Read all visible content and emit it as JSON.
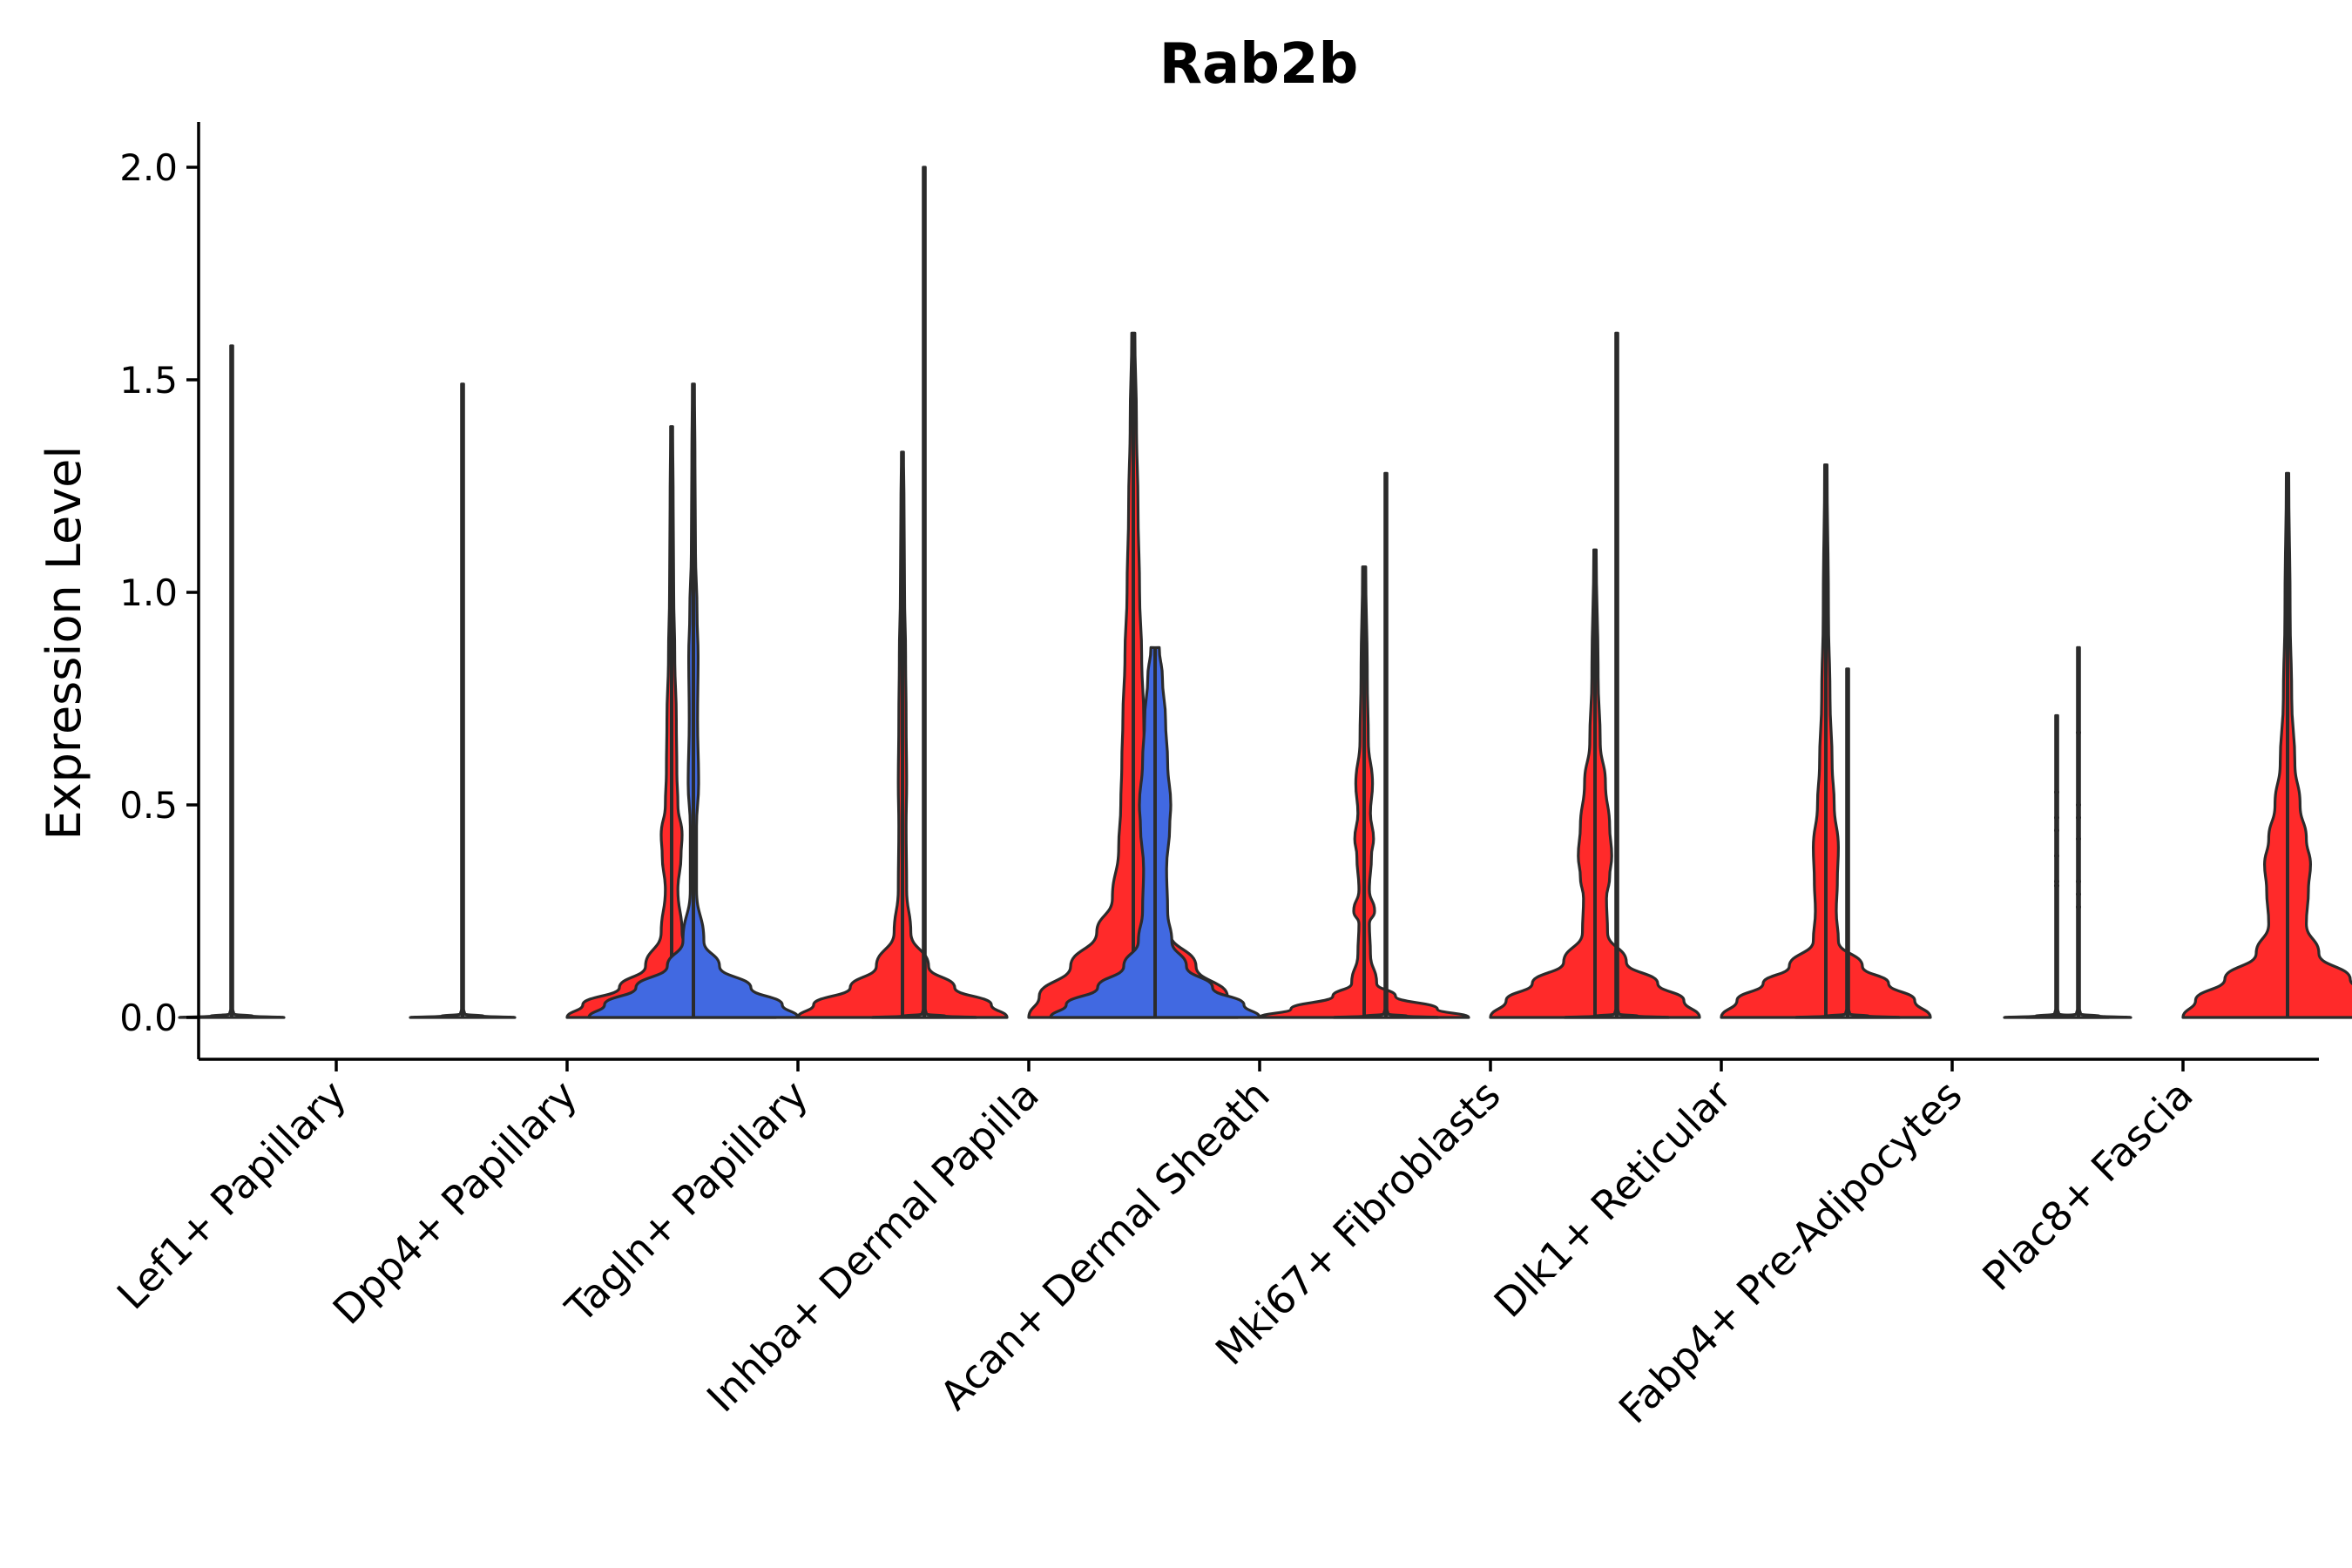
{
  "chart_data": {
    "type": "violin",
    "title": "Rab2b",
    "xlabel": "",
    "ylabel": "Expression Level",
    "ylim": [
      -0.1,
      2.1
    ],
    "yticks": [
      "0.0",
      "0.5",
      "1.0",
      "1.5",
      "2.0"
    ],
    "grid": false,
    "legend": "none",
    "colors": {
      "blue": "#4169e1",
      "red": "#ff2a2a",
      "none": "#ffffff",
      "outline": "#2b2b2b"
    },
    "categories": [
      "Lef1+ Papillary",
      "Dpp4+ Papillary",
      "Tagln+ Papillary",
      "Inhba+ Dermal Papilla",
      "Acan+ Dermal Sheath",
      "Mki67+ Fibroblasts",
      "Dlk1+ Reticular",
      "Fabp4+ Pre-Adipocytes",
      "Plac8+ Fascia"
    ],
    "violins": [
      {
        "category": "Lef1+ Papillary",
        "side": "left",
        "fill": "none",
        "max": 1.58,
        "profile": [
          [
            0,
            0.5
          ],
          [
            0.003,
            0.2
          ],
          [
            0.008,
            0.02
          ],
          [
            0.02,
            0.01
          ],
          [
            1.58,
            0.01
          ]
        ]
      },
      {
        "category": "Lef1+ Papillary",
        "side": "right",
        "fill": "none",
        "max": 0.0,
        "profile": []
      },
      {
        "category": "Dpp4+ Papillary",
        "side": "left",
        "fill": "none",
        "max": 1.49,
        "profile": [
          [
            0,
            0.5
          ],
          [
            0.003,
            0.2
          ],
          [
            0.008,
            0.02
          ],
          [
            0.02,
            0.01
          ],
          [
            1.49,
            0.01
          ]
        ]
      },
      {
        "category": "Dpp4+ Papillary",
        "side": "right",
        "fill": "red",
        "max": 1.39,
        "profile": [
          [
            0,
            1.0
          ],
          [
            0.03,
            0.85
          ],
          [
            0.07,
            0.5
          ],
          [
            0.12,
            0.25
          ],
          [
            0.2,
            0.1
          ],
          [
            0.3,
            0.06
          ],
          [
            0.38,
            0.09
          ],
          [
            0.43,
            0.1
          ],
          [
            0.5,
            0.06
          ],
          [
            0.58,
            0.05
          ],
          [
            0.7,
            0.045
          ],
          [
            0.85,
            0.03
          ],
          [
            1.0,
            0.02
          ],
          [
            1.2,
            0.015
          ],
          [
            1.39,
            0.01
          ]
        ]
      },
      {
        "category": "Tagln+ Papillary",
        "side": "left",
        "fill": "blue",
        "max": 1.49,
        "profile": [
          [
            0,
            1.0
          ],
          [
            0.03,
            0.85
          ],
          [
            0.07,
            0.55
          ],
          [
            0.12,
            0.25
          ],
          [
            0.18,
            0.1
          ],
          [
            0.3,
            0.03
          ],
          [
            0.45,
            0.03
          ],
          [
            0.55,
            0.05
          ],
          [
            0.7,
            0.04
          ],
          [
            0.85,
            0.045
          ],
          [
            0.95,
            0.035
          ],
          [
            1.1,
            0.02
          ],
          [
            1.3,
            0.015
          ],
          [
            1.49,
            0.01
          ]
        ]
      },
      {
        "category": "Tagln+ Papillary",
        "side": "right",
        "fill": "red",
        "max": 1.33,
        "profile": [
          [
            0,
            1.0
          ],
          [
            0.03,
            0.85
          ],
          [
            0.07,
            0.5
          ],
          [
            0.12,
            0.25
          ],
          [
            0.2,
            0.08
          ],
          [
            0.3,
            0.04
          ],
          [
            0.45,
            0.035
          ],
          [
            0.55,
            0.04
          ],
          [
            0.7,
            0.035
          ],
          [
            0.85,
            0.03
          ],
          [
            1.0,
            0.02
          ],
          [
            1.2,
            0.015
          ],
          [
            1.33,
            0.01
          ]
        ]
      },
      {
        "category": "Inhba+ Dermal Papilla",
        "side": "left",
        "fill": "none",
        "max": 2.0,
        "profile": [
          [
            0,
            0.5
          ],
          [
            0.003,
            0.2
          ],
          [
            0.008,
            0.02
          ],
          [
            0.02,
            0.01
          ],
          [
            2.0,
            0.01
          ]
        ]
      },
      {
        "category": "Inhba+ Dermal Papilla",
        "side": "right",
        "fill": "red",
        "max": 1.61,
        "profile": [
          [
            0,
            1.0
          ],
          [
            0.05,
            0.9
          ],
          [
            0.12,
            0.6
          ],
          [
            0.2,
            0.35
          ],
          [
            0.28,
            0.2
          ],
          [
            0.4,
            0.14
          ],
          [
            0.5,
            0.12
          ],
          [
            0.6,
            0.11
          ],
          [
            0.7,
            0.1
          ],
          [
            0.85,
            0.08
          ],
          [
            1.0,
            0.06
          ],
          [
            1.2,
            0.045
          ],
          [
            1.4,
            0.03
          ],
          [
            1.61,
            0.015
          ]
        ]
      },
      {
        "category": "Acan+ Dermal Sheath",
        "side": "left",
        "fill": "blue",
        "max": 0.87,
        "profile": [
          [
            0,
            1.0
          ],
          [
            0.03,
            0.85
          ],
          [
            0.07,
            0.55
          ],
          [
            0.12,
            0.3
          ],
          [
            0.18,
            0.16
          ],
          [
            0.25,
            0.12
          ],
          [
            0.35,
            0.11
          ],
          [
            0.45,
            0.14
          ],
          [
            0.5,
            0.15
          ],
          [
            0.6,
            0.12
          ],
          [
            0.7,
            0.1
          ],
          [
            0.8,
            0.07
          ],
          [
            0.87,
            0.04
          ]
        ]
      },
      {
        "category": "Acan+ Dermal Sheath",
        "side": "right",
        "fill": "red",
        "max": 1.06,
        "profile": [
          [
            0,
            1.0
          ],
          [
            0.02,
            0.7
          ],
          [
            0.05,
            0.3
          ],
          [
            0.08,
            0.12
          ],
          [
            0.15,
            0.06
          ],
          [
            0.22,
            0.05
          ],
          [
            0.25,
            0.1
          ],
          [
            0.3,
            0.05
          ],
          [
            0.38,
            0.07
          ],
          [
            0.42,
            0.09
          ],
          [
            0.48,
            0.06
          ],
          [
            0.55,
            0.08
          ],
          [
            0.65,
            0.04
          ],
          [
            0.8,
            0.03
          ],
          [
            1.06,
            0.015
          ]
        ]
      },
      {
        "category": "Mki67+ Fibroblasts",
        "side": "left",
        "fill": "none",
        "max": 1.28,
        "profile": [
          [
            0,
            0.5
          ],
          [
            0.003,
            0.2
          ],
          [
            0.008,
            0.02
          ],
          [
            0.02,
            0.01
          ],
          [
            1.28,
            0.01
          ]
        ]
      },
      {
        "category": "Mki67+ Fibroblasts",
        "side": "right",
        "fill": "red",
        "max": 1.1,
        "profile": [
          [
            0,
            1.0
          ],
          [
            0.04,
            0.85
          ],
          [
            0.08,
            0.6
          ],
          [
            0.13,
            0.3
          ],
          [
            0.2,
            0.12
          ],
          [
            0.28,
            0.11
          ],
          [
            0.33,
            0.14
          ],
          [
            0.38,
            0.16
          ],
          [
            0.45,
            0.14
          ],
          [
            0.55,
            0.1
          ],
          [
            0.65,
            0.05
          ],
          [
            0.8,
            0.03
          ],
          [
            1.1,
            0.012
          ]
        ]
      },
      {
        "category": "Dlk1+ Reticular",
        "side": "left",
        "fill": "none",
        "max": 1.61,
        "profile": [
          [
            0,
            0.5
          ],
          [
            0.003,
            0.2
          ],
          [
            0.008,
            0.02
          ],
          [
            0.02,
            0.01
          ],
          [
            1.61,
            0.01
          ]
        ]
      },
      {
        "category": "Dlk1+ Reticular",
        "side": "right",
        "fill": "red",
        "max": 1.3,
        "profile": [
          [
            0,
            1.0
          ],
          [
            0.04,
            0.85
          ],
          [
            0.08,
            0.6
          ],
          [
            0.12,
            0.35
          ],
          [
            0.18,
            0.12
          ],
          [
            0.25,
            0.1
          ],
          [
            0.32,
            0.11
          ],
          [
            0.4,
            0.12
          ],
          [
            0.5,
            0.08
          ],
          [
            0.6,
            0.06
          ],
          [
            0.75,
            0.04
          ],
          [
            0.95,
            0.025
          ],
          [
            1.3,
            0.012
          ]
        ]
      },
      {
        "category": "Fabp4+ Pre-Adipocytes",
        "side": "left",
        "fill": "none",
        "max": 0.82,
        "profile": [
          [
            0,
            0.5
          ],
          [
            0.003,
            0.2
          ],
          [
            0.008,
            0.02
          ],
          [
            0.02,
            0.01
          ],
          [
            0.82,
            0.01
          ]
        ]
      },
      {
        "category": "Fabp4+ Pre-Adipocytes",
        "side": "right",
        "fill": "none",
        "max": 0.71,
        "profile": [
          [
            0,
            0.5
          ],
          [
            0.003,
            0.2
          ],
          [
            0.008,
            0.02
          ],
          [
            0.02,
            0.01
          ],
          [
            0.71,
            0.01
          ]
        ]
      },
      {
        "category": "Plac8+ Fascia",
        "side": "left",
        "fill": "none",
        "max": 0.87,
        "profile": [
          [
            0,
            0.5
          ],
          [
            0.003,
            0.2
          ],
          [
            0.008,
            0.02
          ],
          [
            0.02,
            0.01
          ],
          [
            0.87,
            0.01
          ]
        ]
      },
      {
        "category": "Plac8+ Fascia",
        "side": "right",
        "fill": "red",
        "max": 1.28,
        "profile": [
          [
            0,
            1.0
          ],
          [
            0.04,
            0.88
          ],
          [
            0.09,
            0.6
          ],
          [
            0.15,
            0.3
          ],
          [
            0.22,
            0.18
          ],
          [
            0.3,
            0.2
          ],
          [
            0.36,
            0.22
          ],
          [
            0.42,
            0.18
          ],
          [
            0.5,
            0.12
          ],
          [
            0.6,
            0.07
          ],
          [
            0.75,
            0.04
          ],
          [
            0.95,
            0.025
          ],
          [
            1.28,
            0.012
          ]
        ]
      }
    ],
    "outliers": [
      {
        "category": "Fabp4+ Pre-Adipocytes",
        "side": "right",
        "values": [
          0.31,
          0.32,
          0.38,
          0.44,
          0.47,
          0.53
        ]
      },
      {
        "category": "Plac8+ Fascia",
        "side": "left",
        "values": [
          0.26,
          0.29,
          0.32,
          0.42,
          0.47,
          0.5,
          0.67
        ]
      }
    ]
  }
}
